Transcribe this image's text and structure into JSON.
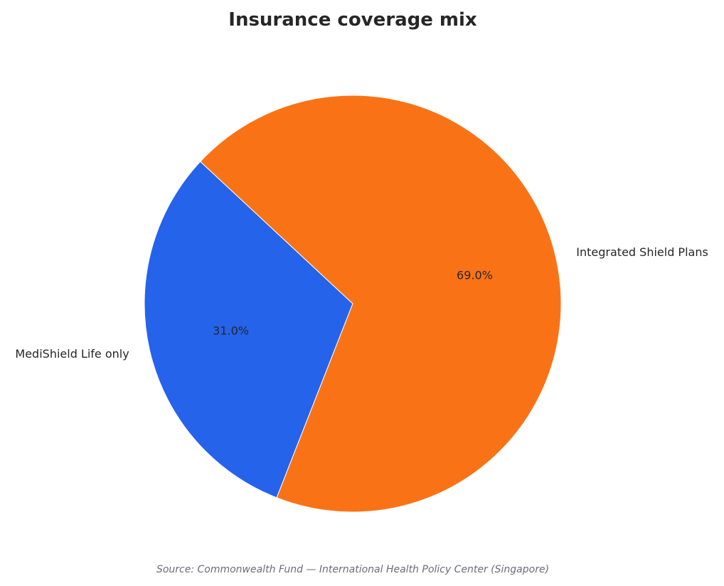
{
  "chart_data": {
    "type": "pie",
    "title": "Insurance coverage mix",
    "categories": [
      "MediShield Life only",
      "Integrated Shield Plans"
    ],
    "values": [
      31.0,
      69.0
    ],
    "value_labels": [
      "31.0%",
      "69.0%"
    ],
    "colors": [
      "#2563eb",
      "#f97316"
    ],
    "start_angle_deg": 137,
    "direction": "counterclockwise",
    "legend": "none",
    "source_note": "Source: Commonwealth Fund — International Health Policy Center (Singapore)"
  }
}
